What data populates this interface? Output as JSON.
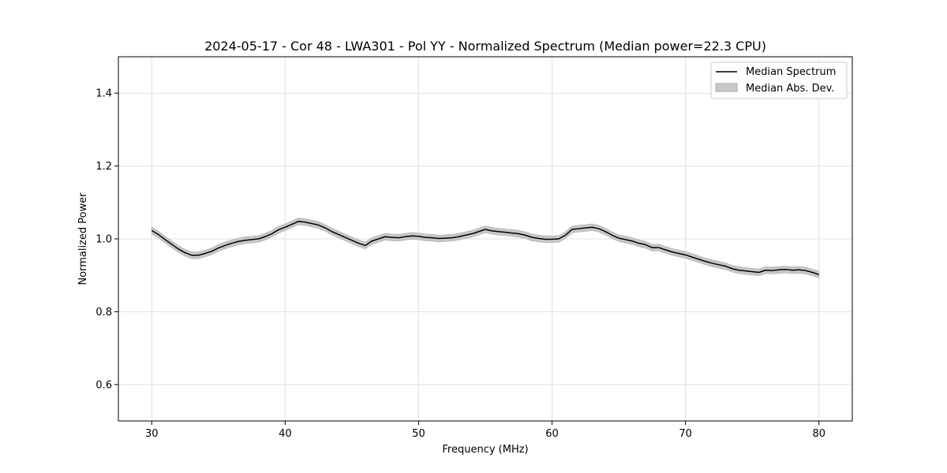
{
  "chart_data": {
    "type": "line",
    "title": "2024-05-17 - Cor 48 - LWA301 - Pol YY - Normalized Spectrum (Median power=22.3 CPU)",
    "xlabel": "Frequency (MHz)",
    "ylabel": "Normalized Power",
    "xlim": [
      27.5,
      82.5
    ],
    "ylim": [
      0.5,
      1.5
    ],
    "xticks": [
      30,
      40,
      50,
      60,
      70,
      80
    ],
    "yticks": [
      0.6,
      0.8,
      1.0,
      1.2,
      1.4
    ],
    "xtick_labels": [
      "30",
      "40",
      "50",
      "60",
      "70",
      "80"
    ],
    "ytick_labels": [
      "0.6",
      "0.8",
      "1.0",
      "1.2",
      "1.4"
    ],
    "grid": true,
    "legend_position": "top-right",
    "series": [
      {
        "name": "Median Spectrum",
        "color": "#000000",
        "x": [
          30,
          30.5,
          31,
          31.5,
          32,
          32.5,
          33,
          33.5,
          34,
          34.5,
          35,
          35.5,
          36,
          36.5,
          37,
          37.5,
          38,
          38.5,
          39,
          39.5,
          40,
          40.5,
          41,
          41.5,
          42,
          42.5,
          43,
          43.5,
          44,
          44.5,
          45,
          45.5,
          46,
          46.5,
          47,
          47.5,
          48,
          48.5,
          49,
          49.5,
          50,
          50.5,
          51,
          51.5,
          52,
          52.5,
          53,
          53.5,
          54,
          54.5,
          55,
          55.5,
          56,
          56.5,
          57,
          57.5,
          58,
          58.5,
          59,
          59.5,
          60,
          60.5,
          61,
          61.5,
          62,
          62.5,
          63,
          63.5,
          64,
          64.5,
          65,
          65.5,
          66,
          66.5,
          67,
          67.5,
          68,
          68.5,
          69,
          69.5,
          70,
          70.5,
          71,
          71.5,
          72,
          72.5,
          73,
          73.5,
          74,
          74.5,
          75,
          75.5,
          76,
          76.5,
          77,
          77.5,
          78,
          78.5,
          79,
          79.5,
          80
        ],
        "y": [
          1.023,
          1.012,
          0.998,
          0.985,
          0.972,
          0.962,
          0.955,
          0.955,
          0.96,
          0.966,
          0.975,
          0.982,
          0.988,
          0.993,
          0.996,
          0.998,
          1.0,
          1.006,
          1.014,
          1.025,
          1.032,
          1.04,
          1.048,
          1.046,
          1.042,
          1.038,
          1.03,
          1.02,
          1.012,
          1.004,
          0.996,
          0.988,
          0.982,
          0.994,
          1.0,
          1.006,
          1.004,
          1.003,
          1.006,
          1.008,
          1.007,
          1.004,
          1.003,
          1.001,
          1.002,
          1.003,
          1.006,
          1.01,
          1.014,
          1.02,
          1.026,
          1.022,
          1.02,
          1.018,
          1.016,
          1.014,
          1.01,
          1.004,
          1.001,
          0.999,
          0.999,
          1.0,
          1.01,
          1.026,
          1.028,
          1.03,
          1.032,
          1.028,
          1.02,
          1.01,
          1.002,
          0.998,
          0.994,
          0.988,
          0.984,
          0.976,
          0.976,
          0.97,
          0.964,
          0.96,
          0.956,
          0.95,
          0.944,
          0.938,
          0.933,
          0.929,
          0.925,
          0.918,
          0.914,
          0.912,
          0.91,
          0.908,
          0.914,
          0.913,
          0.915,
          0.916,
          0.914,
          0.915,
          0.913,
          0.908,
          0.902
        ]
      }
    ],
    "band": {
      "name": "Median Abs. Dev.",
      "color": "#c8c8c8",
      "half_width": 0.009
    }
  }
}
